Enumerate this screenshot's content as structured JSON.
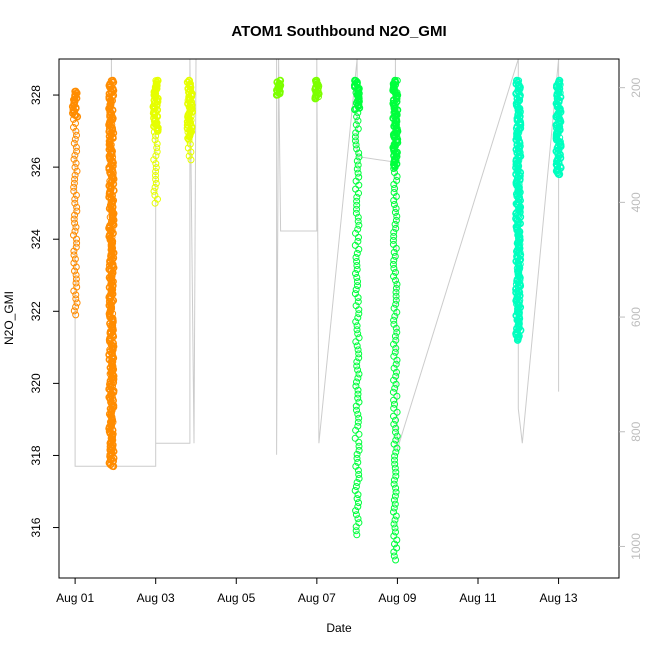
{
  "chart_data": {
    "type": "scatter",
    "title": "ATOM1 Southbound N2O_GMI",
    "xlabel": "Date",
    "ylabel": "N2O_GMI",
    "x_unit": "days since Aug 01",
    "xlim": [
      -0.4,
      13.5
    ],
    "ylim": [
      314.6,
      329.0
    ],
    "x_ticks": [
      {
        "value": 0,
        "label": "Aug 01"
      },
      {
        "value": 2,
        "label": "Aug 03"
      },
      {
        "value": 4,
        "label": "Aug 05"
      },
      {
        "value": 6,
        "label": "Aug 07"
      },
      {
        "value": 8,
        "label": "Aug 09"
      },
      {
        "value": 10,
        "label": "Aug 11"
      },
      {
        "value": 12,
        "label": "Aug 13"
      }
    ],
    "y_ticks": [
      316,
      318,
      320,
      322,
      324,
      326,
      328
    ],
    "right_axis": {
      "range": [
        1055,
        150
      ],
      "ticks": [
        200,
        400,
        600,
        800,
        1000
      ],
      "color": "#bdbdbd"
    },
    "grid": false,
    "legend": "none",
    "series": [
      {
        "color": "#ff8c00",
        "segments": [
          {
            "x": 0.0,
            "ymin": 321.9,
            "ymax": 328.1,
            "dense_min": 327.4
          },
          {
            "x": 0.9,
            "ymin": 317.7,
            "ymax": 328.4,
            "dense_min": 317.7
          }
        ]
      },
      {
        "color": "#e6ff00",
        "segments": [
          {
            "x": 2.0,
            "ymin": 325.0,
            "ymax": 328.4,
            "dense_min": 327.0
          },
          {
            "x": 2.85,
            "ymin": 326.2,
            "ymax": 328.4,
            "dense_min": 326.8
          }
        ]
      },
      {
        "color": "#7cff00",
        "segments": [
          {
            "x": 5.05,
            "ymin": 328.0,
            "ymax": 328.4,
            "dense_min": 328.0
          },
          {
            "x": 6.0,
            "ymin": 327.9,
            "ymax": 328.4,
            "dense_min": 327.9
          }
        ]
      },
      {
        "color": "#00ff3c",
        "segments": [
          {
            "x": 7.0,
            "ymin": 315.8,
            "ymax": 328.4,
            "dense_min": 327.6
          },
          {
            "x": 7.95,
            "ymin": 315.1,
            "ymax": 328.4,
            "dense_min": 326.0
          }
        ]
      },
      {
        "color": "#00ffbf",
        "segments": [
          {
            "x": 11.0,
            "ymin": 321.2,
            "ymax": 328.4,
            "dense_min": 321.2
          },
          {
            "x": 12.0,
            "ymin": 325.8,
            "ymax": 328.4,
            "dense_min": 325.8
          }
        ]
      }
    ],
    "pressure_trace": {
      "color": "#cccccc",
      "points": [
        [
          0.0,
          270
        ],
        [
          0.0,
          860
        ],
        [
          0.9,
          860
        ],
        [
          0.9,
          150
        ],
        [
          0.95,
          860
        ],
        [
          2.0,
          860
        ],
        [
          2.0,
          270
        ],
        [
          2.0,
          820
        ],
        [
          2.85,
          820
        ],
        [
          2.85,
          150
        ],
        [
          2.95,
          820
        ],
        [
          3.0,
          150
        ],
        [
          5.0,
          150
        ],
        [
          5.0,
          840
        ],
        [
          5.05,
          150
        ],
        [
          5.1,
          450
        ],
        [
          6.0,
          450
        ],
        [
          6.0,
          150
        ],
        [
          6.05,
          820
        ],
        [
          7.0,
          150
        ],
        [
          7.0,
          320
        ],
        [
          7.95,
          330
        ],
        [
          7.95,
          150
        ],
        [
          8.0,
          830
        ],
        [
          11.0,
          150
        ],
        [
          11.0,
          760
        ],
        [
          11.1,
          820
        ],
        [
          12.0,
          150
        ],
        [
          12.0,
          730
        ]
      ]
    }
  }
}
